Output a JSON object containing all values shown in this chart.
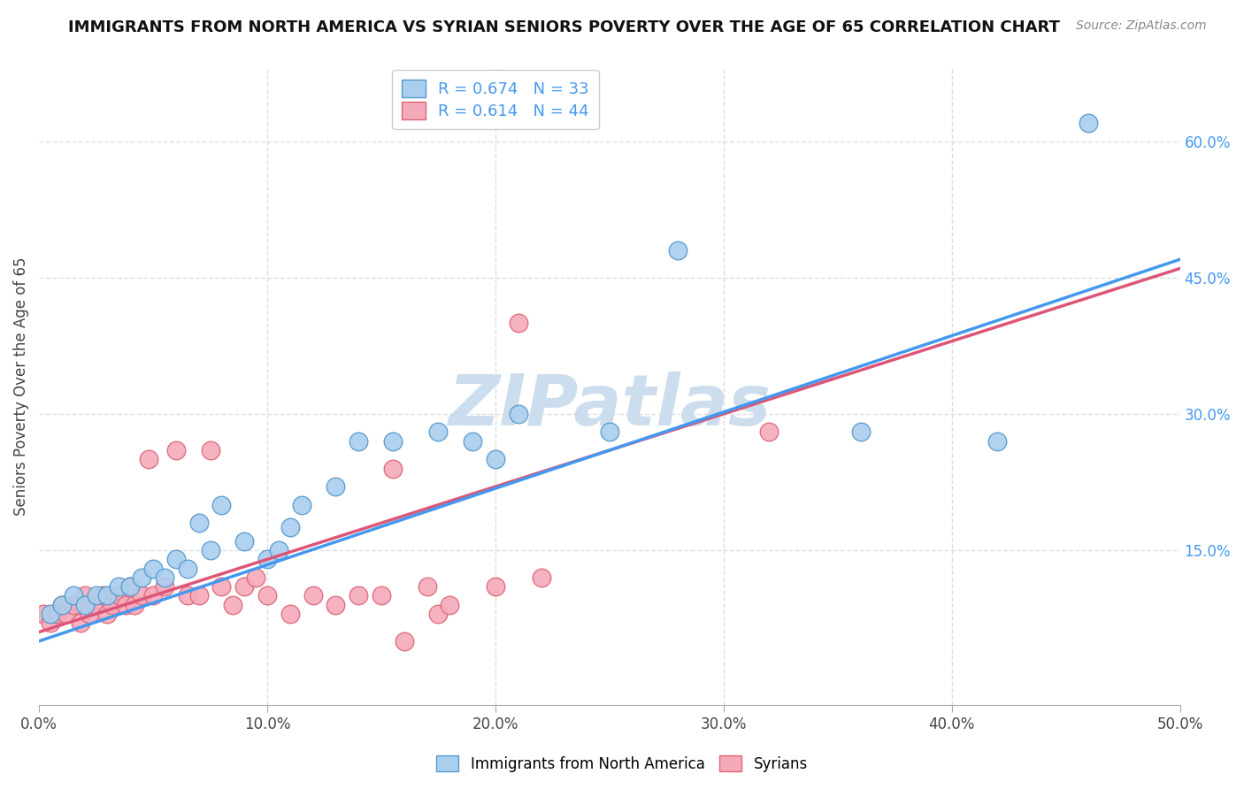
{
  "title": "IMMIGRANTS FROM NORTH AMERICA VS SYRIAN SENIORS POVERTY OVER THE AGE OF 65 CORRELATION CHART",
  "source": "Source: ZipAtlas.com",
  "ylabel": "Seniors Poverty Over the Age of 65",
  "x_tick_labels": [
    "0.0%",
    "10.0%",
    "20.0%",
    "30.0%",
    "40.0%",
    "50.0%"
  ],
  "x_tick_values": [
    0.0,
    0.1,
    0.2,
    0.3,
    0.4,
    0.5
  ],
  "y_tick_labels": [
    "15.0%",
    "30.0%",
    "45.0%",
    "60.0%"
  ],
  "y_tick_values": [
    0.15,
    0.3,
    0.45,
    0.6
  ],
  "xlim": [
    0.0,
    0.5
  ],
  "ylim": [
    -0.02,
    0.68
  ],
  "series1_name": "Immigrants from North America",
  "series1_R": 0.674,
  "series1_N": 33,
  "series1_color": "#aacfee",
  "series1_edge_color": "#5599cc",
  "series2_name": "Syrians",
  "series2_R": 0.614,
  "series2_N": 44,
  "series2_color": "#f5aabb",
  "series2_edge_color": "#dd6677",
  "trend1_color": "#4499ee",
  "trend2_color": "#dd5577",
  "watermark": "ZIPatlas",
  "watermark_color": "#ccdded",
  "background_color": "#ffffff",
  "grid_color": "#dddddd",
  "series1_x": [
    0.005,
    0.01,
    0.015,
    0.02,
    0.025,
    0.03,
    0.035,
    0.04,
    0.045,
    0.05,
    0.055,
    0.06,
    0.065,
    0.07,
    0.075,
    0.08,
    0.09,
    0.1,
    0.105,
    0.11,
    0.115,
    0.13,
    0.14,
    0.155,
    0.175,
    0.19,
    0.2,
    0.21,
    0.25,
    0.28,
    0.36,
    0.42,
    0.46
  ],
  "series1_y": [
    0.08,
    0.09,
    0.1,
    0.09,
    0.1,
    0.1,
    0.11,
    0.11,
    0.12,
    0.13,
    0.12,
    0.14,
    0.13,
    0.18,
    0.15,
    0.2,
    0.16,
    0.14,
    0.15,
    0.175,
    0.2,
    0.22,
    0.27,
    0.27,
    0.28,
    0.27,
    0.25,
    0.3,
    0.28,
    0.48,
    0.28,
    0.27,
    0.62
  ],
  "series2_x": [
    0.002,
    0.005,
    0.008,
    0.01,
    0.012,
    0.015,
    0.018,
    0.02,
    0.022,
    0.025,
    0.028,
    0.03,
    0.032,
    0.035,
    0.038,
    0.04,
    0.042,
    0.045,
    0.048,
    0.05,
    0.055,
    0.06,
    0.065,
    0.07,
    0.075,
    0.08,
    0.085,
    0.09,
    0.095,
    0.1,
    0.11,
    0.12,
    0.13,
    0.14,
    0.15,
    0.155,
    0.16,
    0.17,
    0.175,
    0.18,
    0.2,
    0.21,
    0.22,
    0.32
  ],
  "series2_y": [
    0.08,
    0.07,
    0.08,
    0.09,
    0.08,
    0.09,
    0.07,
    0.1,
    0.08,
    0.09,
    0.1,
    0.08,
    0.09,
    0.1,
    0.09,
    0.11,
    0.09,
    0.1,
    0.25,
    0.1,
    0.11,
    0.26,
    0.1,
    0.1,
    0.26,
    0.11,
    0.09,
    0.11,
    0.12,
    0.1,
    0.08,
    0.1,
    0.09,
    0.1,
    0.1,
    0.24,
    0.05,
    0.11,
    0.08,
    0.09,
    0.11,
    0.4,
    0.12,
    0.28
  ]
}
